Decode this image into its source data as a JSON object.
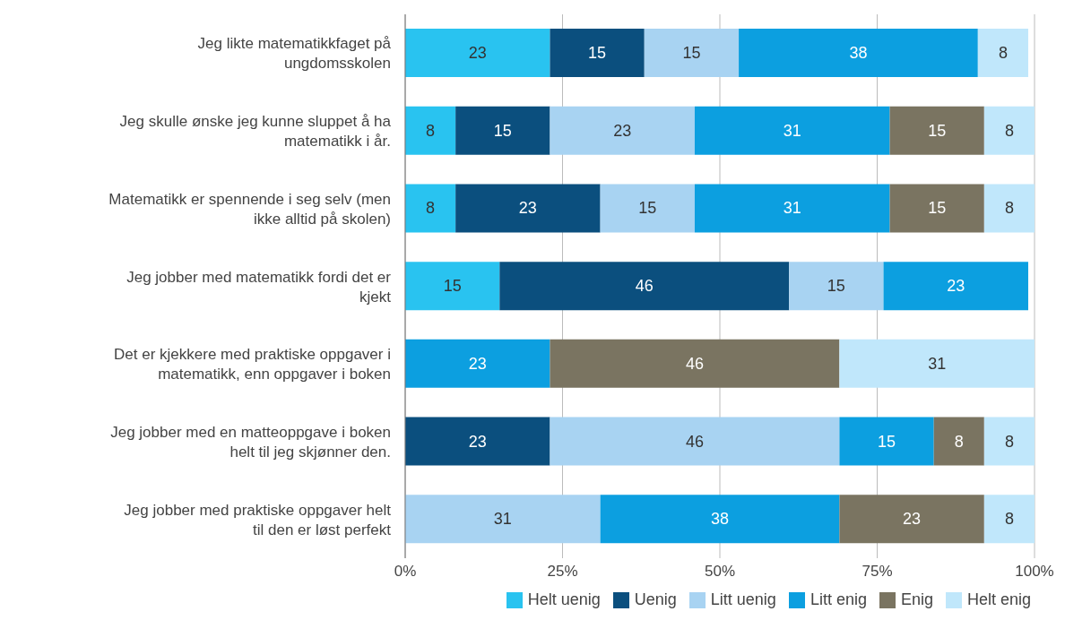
{
  "chart_data": {
    "type": "bar",
    "orientation": "horizontal",
    "stacked": true,
    "categories": [
      "Jeg likte matematikkfaget på ungdomsskolen",
      "Jeg skulle ønske jeg kunne sluppet å ha matematikk i år.",
      "Matematikk er spennende i seg selv (men ikke alltid på skolen)",
      "Jeg jobber med matematikk fordi det er kjekt",
      "Det er kjekkere med praktiske oppgaver i matematikk, enn oppgaver i boken",
      "Jeg jobber med en matteoppgave i boken helt til jeg skjønner den.",
      "Jeg jobber med praktiske oppgaver helt til den er løst perfekt"
    ],
    "series": [
      {
        "name": "Helt uenig",
        "color": "#29c3f0",
        "values": [
          23,
          8,
          8,
          15,
          null,
          null,
          null
        ]
      },
      {
        "name": "Uenig",
        "color": "#0b4f7e",
        "values": [
          15,
          15,
          23,
          46,
          null,
          23,
          null
        ]
      },
      {
        "name": "Litt uenig",
        "color": "#a8d3f2",
        "values": [
          15,
          23,
          15,
          15,
          null,
          46,
          31
        ]
      },
      {
        "name": "Litt enig",
        "color": "#0c9fe0",
        "values": [
          38,
          31,
          31,
          23,
          23,
          15,
          38
        ]
      },
      {
        "name": "Enig",
        "color": "#7a7461",
        "values": [
          null,
          15,
          15,
          null,
          46,
          8,
          23
        ]
      },
      {
        "name": "Helt enig",
        "color": "#c0e7fb",
        "values": [
          8,
          8,
          8,
          null,
          31,
          8,
          8
        ]
      }
    ],
    "xlim": [
      0,
      100
    ],
    "xticks": [
      {
        "value": 0,
        "label": "0%"
      },
      {
        "value": 25,
        "label": "25%"
      },
      {
        "value": 50,
        "label": "50%"
      },
      {
        "value": 75,
        "label": "75%"
      },
      {
        "value": 100,
        "label": "100%"
      }
    ],
    "grid": "x",
    "legend": "bottom",
    "data_labels": true
  }
}
